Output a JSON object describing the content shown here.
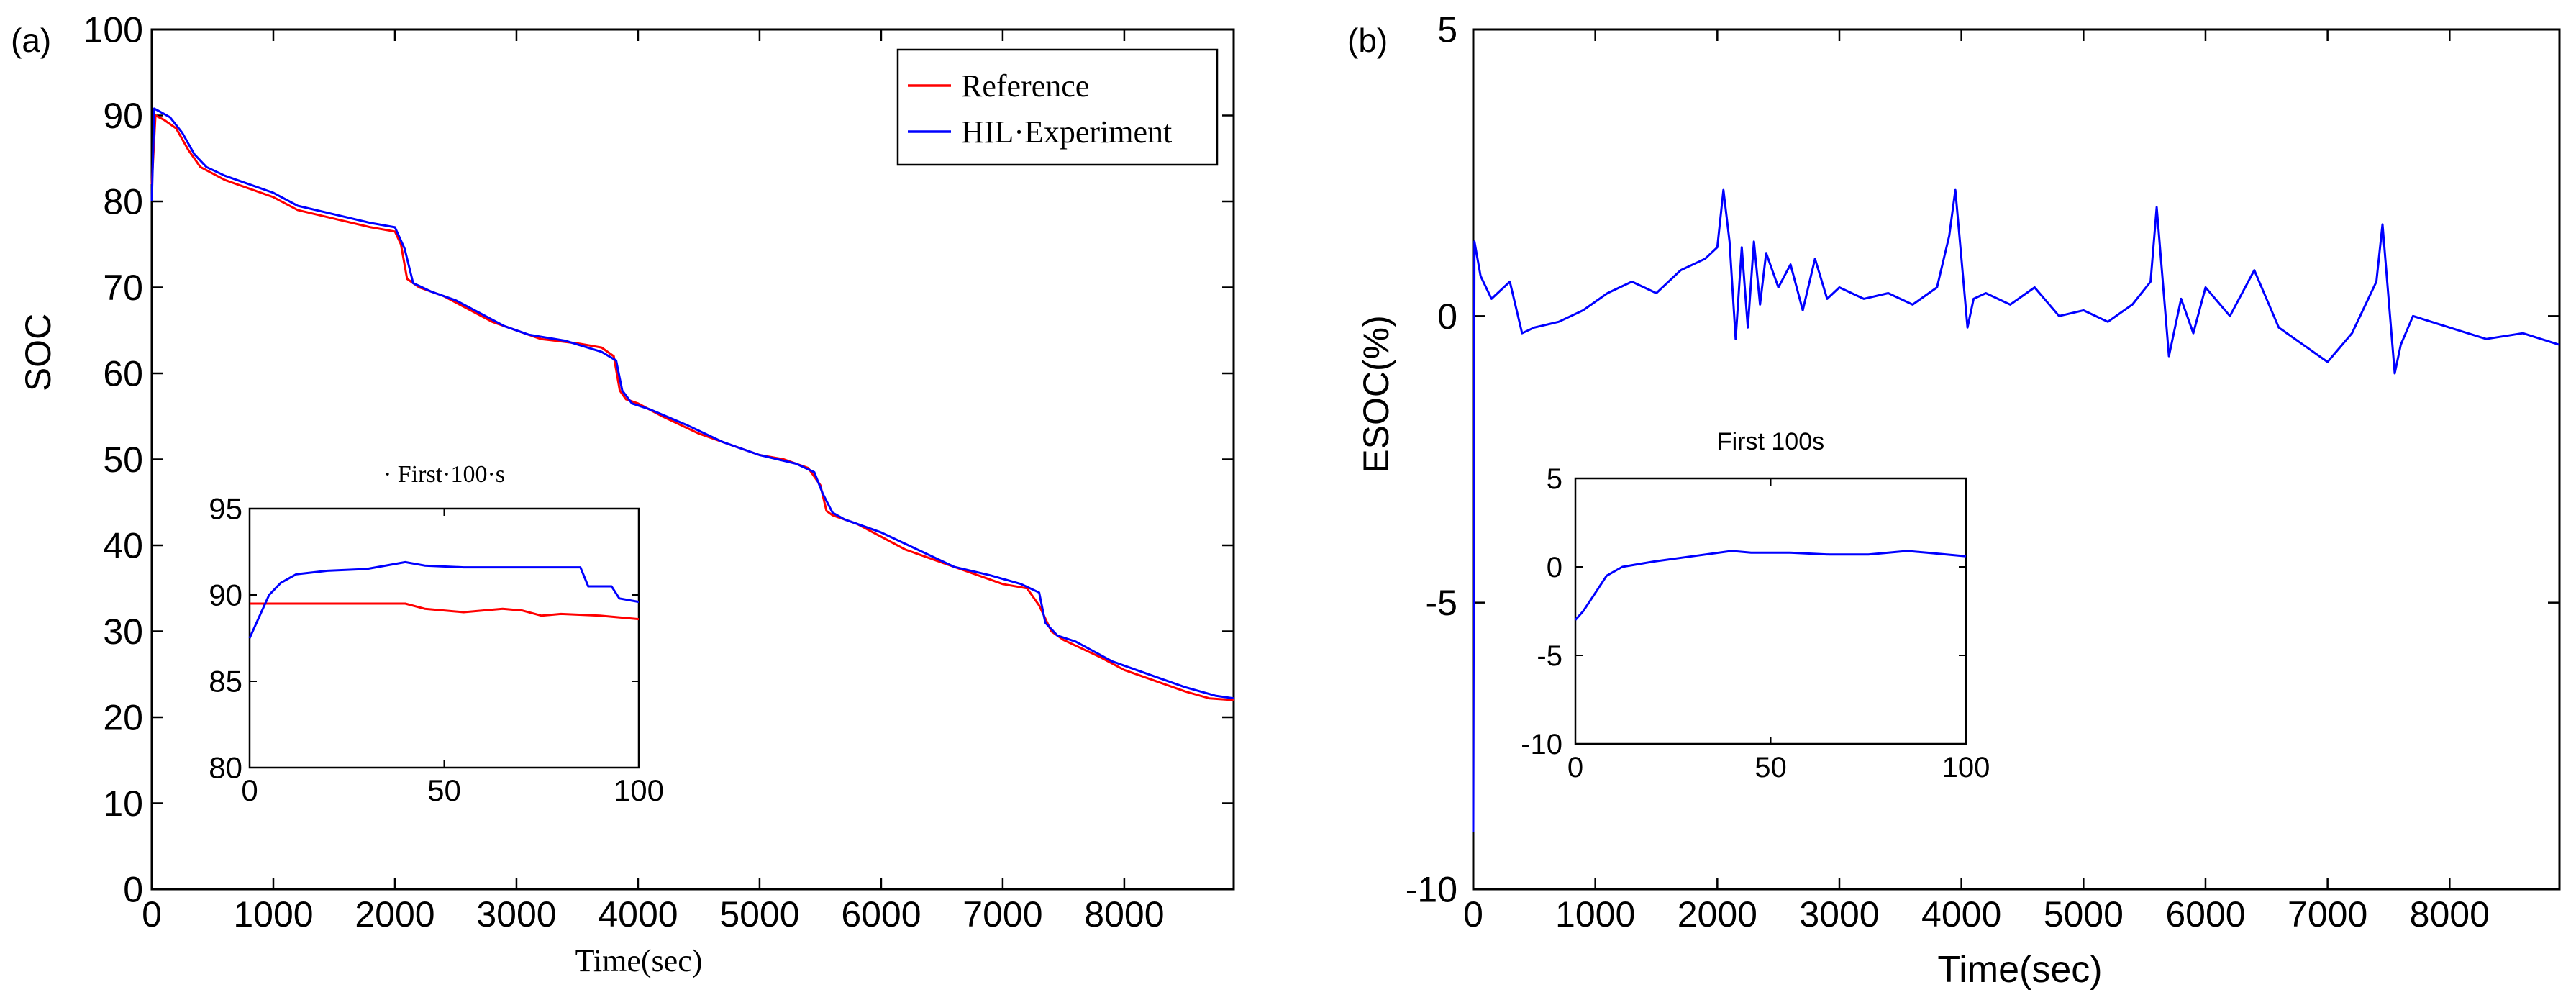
{
  "panels": {
    "a": {
      "label": "(a)",
      "chart_data": {
        "type": "line",
        "title": "",
        "xlabel": "Time(sec)",
        "ylabel": "SOC",
        "xlim": [
          0,
          8900
        ],
        "ylim": [
          0,
          100
        ],
        "xticks": [
          0,
          1000,
          2000,
          3000,
          4000,
          5000,
          6000,
          7000,
          8000
        ],
        "yticks": [
          0,
          10,
          20,
          30,
          40,
          50,
          60,
          70,
          80,
          90,
          100
        ],
        "legend": "top-right",
        "series": [
          {
            "name": "Reference",
            "color": "#ff0000",
            "x": [
              0,
              30,
              100,
              200,
              300,
              400,
              600,
              800,
              1000,
              1200,
              1500,
              1800,
              2000,
              2050,
              2100,
              2200,
              2400,
              2600,
              2800,
              3000,
              3200,
              3500,
              3700,
              3800,
              3850,
              3900,
              4000,
              4200,
              4500,
              4800,
              5000,
              5200,
              5400,
              5500,
              5550,
              5600,
              5800,
              6000,
              6200,
              6500,
              6800,
              7000,
              7200,
              7300,
              7400,
              7500,
              7800,
              8000,
              8200,
              8500,
              8700,
              8900
            ],
            "values": [
              82,
              90,
              89.5,
              88.5,
              86,
              84,
              82.5,
              81.5,
              80.5,
              79,
              78,
              77,
              76.5,
              75,
              71,
              70,
              69,
              67.5,
              66,
              65,
              64,
              63.5,
              63,
              62,
              58,
              57,
              56.5,
              55,
              53,
              51.5,
              50.5,
              50,
              49,
              47,
              44,
              43.5,
              42.5,
              41,
              39.5,
              38,
              36.5,
              35.5,
              35,
              33,
              30,
              29,
              27,
              25.5,
              24.5,
              23,
              22.2,
              22
            ]
          },
          {
            "name": "HIL·Experiment",
            "color": "#0000ff",
            "x": [
              0,
              20,
              60,
              150,
              250,
              350,
              450,
              600,
              800,
              1000,
              1200,
              1500,
              1800,
              2000,
              2080,
              2150,
              2300,
              2500,
              2700,
              2900,
              3100,
              3400,
              3700,
              3820,
              3870,
              3950,
              4100,
              4400,
              4700,
              5000,
              5300,
              5450,
              5520,
              5600,
              5700,
              6000,
              6300,
              6600,
              6900,
              7150,
              7300,
              7350,
              7450,
              7600,
              7900,
              8200,
              8500,
              8750,
              8900
            ],
            "values": [
              80,
              90.8,
              90.5,
              89.8,
              88,
              85.5,
              84,
              83,
              82,
              81,
              79.5,
              78.5,
              77.5,
              77,
              74.5,
              70.5,
              69.5,
              68.5,
              67,
              65.5,
              64.5,
              63.8,
              62.5,
              61.5,
              58,
              56.5,
              55.8,
              54,
              52,
              50.5,
              49.5,
              48.5,
              46,
              43.8,
              43,
              41.5,
              39.5,
              37.5,
              36.5,
              35.5,
              34.5,
              31,
              29.5,
              28.8,
              26.5,
              25,
              23.5,
              22.5,
              22.2
            ]
          }
        ],
        "inset": {
          "title": "· First·100·s",
          "xlim": [
            0,
            100
          ],
          "ylim": [
            80,
            95
          ],
          "xticks": [
            0,
            50,
            100
          ],
          "yticks": [
            80,
            85,
            90,
            95
          ],
          "series": [
            {
              "name": "Reference",
              "color": "#ff0000",
              "x": [
                0,
                30,
                40,
                45,
                55,
                60,
                65,
                70,
                75,
                80,
                90,
                100
              ],
              "values": [
                89.5,
                89.5,
                89.5,
                89.2,
                89.0,
                89.1,
                89.2,
                89.1,
                88.8,
                88.9,
                88.8,
                88.6
              ]
            },
            {
              "name": "HIL·Experiment",
              "color": "#0000ff",
              "x": [
                0,
                2,
                5,
                8,
                12,
                20,
                30,
                40,
                45,
                55,
                65,
                75,
                85,
                87,
                93,
                95,
                100
              ],
              "values": [
                87.5,
                88.5,
                90,
                90.7,
                91.2,
                91.4,
                91.5,
                91.9,
                91.7,
                91.6,
                91.6,
                91.6,
                91.6,
                90.5,
                90.5,
                89.8,
                89.6
              ]
            }
          ]
        }
      }
    },
    "b": {
      "label": "(b)",
      "chart_data": {
        "type": "line",
        "title": "",
        "xlabel": "Time(sec)",
        "ylabel": "ESOC(%)",
        "xlim": [
          0,
          8900
        ],
        "ylim": [
          -10,
          5
        ],
        "xticks": [
          0,
          1000,
          2000,
          3000,
          4000,
          5000,
          6000,
          7000,
          8000
        ],
        "yticks": [
          -10,
          -5,
          0,
          5
        ],
        "series": [
          {
            "name": "ESOC",
            "color": "#0000ff",
            "x": [
              0,
              10,
              60,
              150,
              300,
              400,
              500,
              700,
              900,
              1100,
              1300,
              1500,
              1700,
              1900,
              2000,
              2050,
              2100,
              2150,
              2200,
              2250,
              2300,
              2350,
              2400,
              2500,
              2600,
              2700,
              2800,
              2900,
              3000,
              3200,
              3400,
              3600,
              3800,
              3900,
              3950,
              4000,
              4050,
              4100,
              4200,
              4400,
              4600,
              4800,
              5000,
              5200,
              5400,
              5550,
              5600,
              5650,
              5700,
              5800,
              5900,
              6000,
              6200,
              6400,
              6600,
              6800,
              7000,
              7200,
              7400,
              7450,
              7500,
              7550,
              7600,
              7700,
              8000,
              8300,
              8600,
              8900
            ],
            "values": [
              -9,
              1.3,
              0.7,
              0.3,
              0.6,
              -0.3,
              -0.2,
              -0.1,
              0.1,
              0.4,
              0.6,
              0.4,
              0.8,
              1.0,
              1.2,
              2.2,
              1.3,
              -0.4,
              1.2,
              -0.2,
              1.3,
              0.2,
              1.1,
              0.5,
              0.9,
              0.1,
              1.0,
              0.3,
              0.5,
              0.3,
              0.4,
              0.2,
              0.5,
              1.4,
              2.2,
              1.0,
              -0.2,
              0.3,
              0.4,
              0.2,
              0.5,
              0.0,
              0.1,
              -0.1,
              0.2,
              0.6,
              1.9,
              0.6,
              -0.7,
              0.3,
              -0.3,
              0.5,
              0.0,
              0.8,
              -0.2,
              -0.5,
              -0.8,
              -0.3,
              0.6,
              1.6,
              0.3,
              -1.0,
              -0.5,
              0.0,
              -0.2,
              -0.4,
              -0.3,
              -0.5
            ]
          }
        ],
        "inset": {
          "title": "First 100s",
          "xlim": [
            0,
            100
          ],
          "ylim": [
            -10,
            5
          ],
          "xticks": [
            0,
            50,
            100
          ],
          "yticks": [
            -10,
            -5,
            0,
            5
          ],
          "series": [
            {
              "name": "ESOC",
              "color": "#0000ff",
              "x": [
                0,
                2,
                5,
                8,
                12,
                20,
                30,
                40,
                45,
                55,
                65,
                75,
                85,
                90,
                100
              ],
              "values": [
                -3,
                -2.5,
                -1.5,
                -0.5,
                0.0,
                0.3,
                0.6,
                0.9,
                0.8,
                0.8,
                0.7,
                0.7,
                0.9,
                0.8,
                0.6
              ]
            }
          ]
        }
      }
    }
  }
}
